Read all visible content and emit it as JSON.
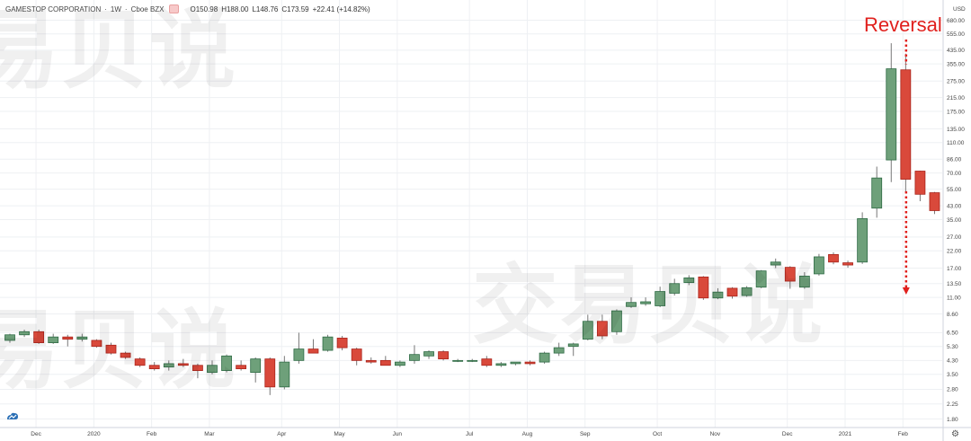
{
  "legend": {
    "symbol": "GAMESTOP CORPORATION",
    "separator1": "·",
    "interval": "1W",
    "separator2": "·",
    "exchange": "Cboe BZX",
    "open": "O150.98",
    "high": "H188.00",
    "low": "L148.76",
    "close": "C173.59",
    "change": "+22.41 (+14.82%)"
  },
  "watermark": [
    "易贝说",
    "交易贝说",
    "易贝说"
  ],
  "axis": {
    "currency": "USD"
  },
  "chart_data": {
    "type": "candlestick",
    "annotation": "Reversal",
    "y_scale": "log",
    "ylim": [
      1.6,
      650
    ],
    "y_ticks": [
      "1.80",
      "2.25",
      "2.80",
      "3.50",
      "4.30",
      "5.30",
      "6.50",
      "8.60",
      "11.00",
      "13.50",
      "17.00",
      "22.00",
      "27.00",
      "35.00",
      "43.00",
      "55.00",
      "70.00",
      "86.00",
      "110.00",
      "135.00",
      "175.00",
      "215.00",
      "275.00",
      "355.00",
      "435.00",
      "555.00",
      "680.00"
    ],
    "x_ticks": [
      {
        "label": "Dec",
        "index": 1
      },
      {
        "label": "2020",
        "index": 5
      },
      {
        "label": "Feb",
        "index": 9
      },
      {
        "label": "Mar",
        "index": 13
      },
      {
        "label": "Apr",
        "index": 18
      },
      {
        "label": "May",
        "index": 22
      },
      {
        "label": "Jun",
        "index": 26
      },
      {
        "label": "Jul",
        "index": 31
      },
      {
        "label": "Aug",
        "index": 35
      },
      {
        "label": "Sep",
        "index": 39
      },
      {
        "label": "Oct",
        "index": 44
      },
      {
        "label": "Nov",
        "index": 48
      },
      {
        "label": "Dec",
        "index": 53
      },
      {
        "label": "2021",
        "index": 57
      },
      {
        "label": "Feb",
        "index": 61
      }
    ],
    "colors": {
      "up": "#6ea07a",
      "down": "#d9493b",
      "up_border": "#2f6b45",
      "down_border": "#a9241b",
      "wick": "#777777"
    },
    "candles": [
      [
        5.8,
        6.4,
        5.6,
        6.3
      ],
      [
        6.3,
        6.8,
        6.1,
        6.6
      ],
      [
        6.6,
        6.8,
        5.5,
        5.6
      ],
      [
        5.6,
        6.4,
        5.5,
        6.1
      ],
      [
        6.1,
        6.3,
        5.3,
        5.9
      ],
      [
        5.9,
        6.4,
        5.7,
        6.1
      ],
      [
        5.8,
        5.9,
        5.2,
        5.3
      ],
      [
        5.4,
        5.6,
        4.7,
        4.8
      ],
      [
        4.8,
        4.9,
        4.4,
        4.5
      ],
      [
        4.4,
        4.5,
        3.9,
        4.0
      ],
      [
        4.0,
        4.2,
        3.7,
        3.8
      ],
      [
        3.9,
        4.3,
        3.7,
        4.1
      ],
      [
        4.1,
        4.4,
        3.9,
        4.0
      ],
      [
        4.0,
        4.1,
        3.3,
        3.7
      ],
      [
        3.6,
        4.3,
        3.5,
        4.0
      ],
      [
        3.7,
        4.7,
        3.6,
        4.6
      ],
      [
        4.0,
        4.3,
        3.7,
        3.8
      ],
      [
        3.6,
        4.5,
        3.1,
        4.4
      ],
      [
        4.4,
        4.5,
        2.57,
        2.9
      ],
      [
        2.9,
        4.6,
        2.8,
        4.2
      ],
      [
        4.3,
        6.5,
        4.1,
        5.1
      ],
      [
        5.1,
        5.9,
        4.8,
        4.8
      ],
      [
        5.0,
        6.3,
        4.9,
        6.1
      ],
      [
        6.0,
        6.2,
        5.0,
        5.2
      ],
      [
        5.1,
        5.2,
        4.0,
        4.3
      ],
      [
        4.3,
        4.5,
        4.1,
        4.2
      ],
      [
        4.3,
        4.6,
        4.0,
        4.0
      ],
      [
        4.0,
        4.3,
        3.9,
        4.2
      ],
      [
        4.3,
        5.4,
        4.1,
        4.7
      ],
      [
        4.6,
        5.0,
        4.4,
        4.9
      ],
      [
        4.9,
        5.0,
        4.3,
        4.4
      ],
      [
        4.3,
        4.4,
        4.2,
        4.3
      ],
      [
        4.3,
        4.4,
        4.2,
        4.3
      ],
      [
        4.4,
        4.6,
        3.9,
        4.0
      ],
      [
        4.0,
        4.2,
        3.9,
        4.1
      ],
      [
        4.1,
        4.2,
        4.0,
        4.2
      ],
      [
        4.2,
        4.3,
        4.0,
        4.1
      ],
      [
        4.2,
        4.9,
        4.1,
        4.8
      ],
      [
        4.8,
        5.6,
        4.6,
        5.2
      ],
      [
        5.3,
        5.6,
        4.6,
        5.5
      ],
      [
        5.9,
        8.5,
        5.8,
        7.7
      ],
      [
        7.7,
        8.5,
        5.9,
        6.2
      ],
      [
        6.6,
        9.2,
        6.3,
        9.0
      ],
      [
        9.6,
        11.0,
        9.4,
        10.2
      ],
      [
        10.0,
        11.0,
        9.7,
        10.3
      ],
      [
        9.7,
        12.9,
        9.5,
        12.0
      ],
      [
        11.7,
        14.5,
        11.3,
        13.5
      ],
      [
        13.7,
        15.3,
        13.2,
        14.7
      ],
      [
        14.9,
        15.1,
        10.6,
        10.9
      ],
      [
        10.9,
        12.6,
        10.7,
        11.9
      ],
      [
        12.6,
        12.8,
        10.8,
        11.2
      ],
      [
        11.3,
        13.0,
        11.1,
        12.7
      ],
      [
        12.8,
        16.5,
        12.6,
        16.3
      ],
      [
        17.8,
        19.6,
        17.0,
        18.6
      ],
      [
        17.2,
        17.5,
        12.5,
        14.0
      ],
      [
        12.8,
        16.0,
        12.5,
        15.1
      ],
      [
        15.6,
        21.0,
        15.2,
        20.1
      ],
      [
        20.8,
        21.5,
        18.0,
        18.6
      ],
      [
        18.4,
        19.0,
        17.1,
        17.8
      ],
      [
        18.6,
        39.0,
        18.1,
        35.5
      ],
      [
        41.5,
        77.0,
        36.0,
        65.0
      ],
      [
        85.0,
        483.0,
        61.1,
        330.0
      ],
      [
        325.0,
        413.0,
        53.0,
        63.8
      ],
      [
        72.0,
        72.5,
        46.0,
        51.0
      ],
      [
        52.2,
        52.8,
        38.0,
        40.0
      ]
    ]
  }
}
